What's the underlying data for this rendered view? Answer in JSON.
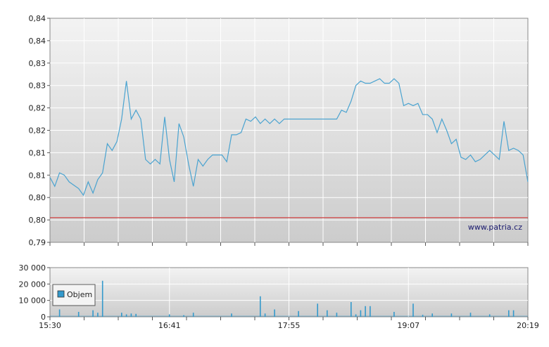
{
  "chart_data": [
    {
      "type": "line",
      "title": "",
      "ylabel": "",
      "xlabel": "",
      "y_tick_labels": [
        "0,84",
        "0,84",
        "0,83",
        "0,83",
        "0,82",
        "0,82",
        "0,81",
        "0,81",
        "0,80",
        "0,80",
        "0,79"
      ],
      "ylim": [
        0.79,
        0.84
      ],
      "x_tick_labels": [
        "15:30",
        "16:41",
        "17:55",
        "19:07",
        "20:19"
      ],
      "reference_line": 0.7955,
      "reference_color": "#d04040",
      "line_color": "#4aa3d0",
      "grid": true,
      "watermark": "www.patria.cz",
      "x": [
        0,
        1,
        2,
        3,
        4,
        6,
        7,
        8,
        9,
        10,
        11,
        12,
        13,
        14,
        15,
        16,
        17,
        18,
        19,
        20,
        21,
        22,
        23,
        24,
        25,
        26,
        27,
        28,
        29,
        30,
        31,
        32,
        33,
        34,
        35,
        36,
        37,
        38,
        39,
        40,
        41,
        42,
        43,
        44,
        45,
        46,
        47,
        48,
        49,
        50,
        52,
        54,
        56,
        58,
        60,
        61,
        62,
        63,
        64,
        65,
        66,
        67,
        68,
        69,
        70,
        71,
        72,
        73,
        74,
        75,
        76,
        77,
        78,
        79,
        80,
        81,
        82,
        83,
        84,
        85,
        86,
        87,
        88,
        89,
        90,
        91,
        92,
        93,
        94,
        95,
        96,
        97,
        98,
        99,
        100
      ],
      "values": [
        0.8045,
        0.8025,
        0.8055,
        0.805,
        0.8035,
        0.802,
        0.8005,
        0.8035,
        0.801,
        0.804,
        0.8055,
        0.812,
        0.8105,
        0.8125,
        0.8175,
        0.826,
        0.8175,
        0.8195,
        0.8175,
        0.8085,
        0.8075,
        0.8085,
        0.8075,
        0.818,
        0.8085,
        0.8035,
        0.8165,
        0.8135,
        0.8075,
        0.8025,
        0.8085,
        0.807,
        0.8085,
        0.8095,
        0.8095,
        0.8095,
        0.808,
        0.814,
        0.814,
        0.8145,
        0.8175,
        0.817,
        0.818,
        0.8165,
        0.8175,
        0.8165,
        0.8175,
        0.8165,
        0.8175,
        0.8175,
        0.8175,
        0.8175,
        0.8175,
        0.8175,
        0.8175,
        0.8195,
        0.819,
        0.8215,
        0.825,
        0.826,
        0.8255,
        0.8255,
        0.826,
        0.8265,
        0.8255,
        0.8255,
        0.8265,
        0.8255,
        0.8205,
        0.821,
        0.8205,
        0.821,
        0.8185,
        0.8185,
        0.8175,
        0.8145,
        0.8175,
        0.815,
        0.812,
        0.813,
        0.809,
        0.8085,
        0.8095,
        0.808,
        0.8085,
        0.8095,
        0.8105,
        0.8095,
        0.8085,
        0.817,
        0.8105,
        0.811,
        0.8105,
        0.8095,
        0.8035
      ]
    },
    {
      "type": "bar",
      "title": "",
      "y_tick_labels": [
        "30 000",
        "20 000",
        "10 000",
        "0"
      ],
      "ylim": [
        0,
        30000
      ],
      "legend": [
        "Objem"
      ],
      "bar_color": "#3399cc",
      "x": [
        2,
        6,
        9,
        10,
        11,
        15,
        16,
        17,
        18,
        25,
        28,
        30,
        38,
        44,
        45,
        47,
        52,
        56,
        58,
        60,
        63,
        64,
        65,
        66,
        67,
        72,
        76,
        78,
        80,
        84,
        88,
        92,
        96,
        97
      ],
      "values": [
        4500,
        3000,
        4000,
        2500,
        22000,
        2500,
        1500,
        2000,
        1800,
        1500,
        1000,
        2500,
        2000,
        12500,
        2000,
        4500,
        3500,
        8000,
        4000,
        2500,
        9000,
        1500,
        4000,
        6500,
        6500,
        3000,
        8000,
        1200,
        2000,
        2000,
        2500,
        1500,
        4000,
        4000
      ]
    }
  ]
}
